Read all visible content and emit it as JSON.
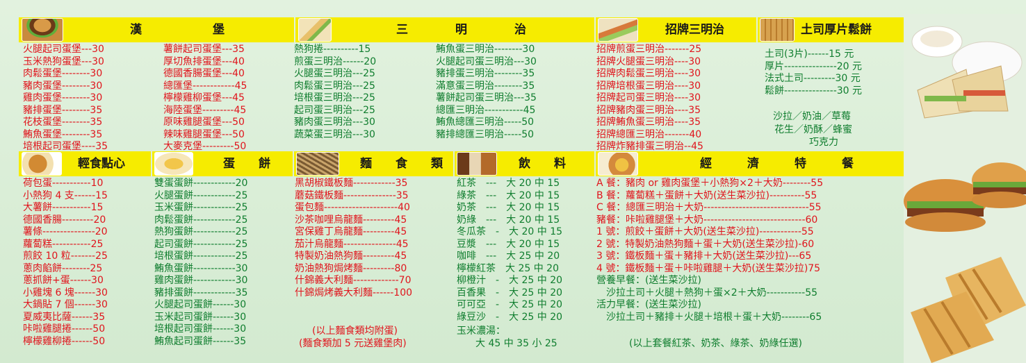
{
  "burger": {
    "title": "漢　　　　　　堡",
    "col1": [
      "火腿起司蛋堡---30",
      "玉米熱狗蛋堡---30",
      "肉鬆蛋堡--------30",
      "豬肉蛋堡--------30",
      "雞肉蛋堡--------30",
      "豬排蛋堡--------35",
      "花枝蛋堡--------35",
      "鮪魚蛋堡--------35",
      "培根起司蛋堡----35"
    ],
    "col2": [
      "薯餅起司蛋堡---35",
      "厚切魚排蛋堡---40",
      "德國香腸蛋堡---40",
      "總匯堡------------45",
      "檸檬雞柳蛋堡---45",
      "海陸蛋堡---------45",
      "原味雞腿蛋堡---50",
      "辣味雞腿蛋堡---50",
      "大麥克堡---------50"
    ]
  },
  "sandwich": {
    "title": "三　　　　明　　　　治",
    "col1": [
      "熱狗捲----------15",
      "煎蛋三明治------20",
      "火腿蛋三明治---25",
      "肉鬆蛋三明治---25",
      "培根蛋三明治---25",
      "起司蛋三明治---25",
      "豬肉蛋三明治---30",
      "蔬菜蛋三明治---30"
    ],
    "col2": [
      "鮪魚蛋三明治--------30",
      "火腿起司蛋三明治---30",
      "豬排蛋三明治--------35",
      "滿意蛋三明治--------35",
      "薯餅起司蛋三明治---35",
      "總匯三明治-----------45",
      "鮪魚總匯三明治-----50",
      "豬排總匯三明治-----50"
    ]
  },
  "signature": {
    "title": "招牌三明治",
    "items": [
      "招牌煎蛋三明治-------25",
      "招牌火腿蛋三明治----30",
      "招牌肉鬆蛋三明治----30",
      "招牌培根蛋三明治----30",
      "招牌起司蛋三明治----30",
      "招牌豬肉蛋三明治----35",
      "招牌鮪魚蛋三明治----35",
      "招牌總匯三明治-------40",
      "招牌炸豬排蛋三明治--45"
    ]
  },
  "toast": {
    "title": "土司厚片鬆餅",
    "items": [
      "土司(3片)------15 元",
      "厚片---------------20 元",
      "法式土司---------30 元",
      "鬆餅---------------30 元"
    ],
    "flavors": [
      "沙拉／奶油／草莓",
      "花生／奶酥／蜂蜜",
      "巧克力"
    ]
  },
  "snack": {
    "title": "輕食點心",
    "items": [
      "荷包蛋-----------10",
      "小熱狗 4 支------15",
      "大薯餅-----------15",
      "德國香腸---------20",
      "薯條---------------20",
      "蘿蔔糕-----------25",
      "煎餃 10 粒-------25",
      "蔥肉餡餅--------25",
      "蔥抓餅+蛋------30",
      "小雞塊 6 塊------30",
      "大鍋貼 7 個------30",
      "夏威夷比薩------35",
      "咔啦雞腿捲------50",
      "檸檬雞柳捲------50"
    ]
  },
  "egg": {
    "title": "蛋　　餅",
    "items": [
      "雙蛋蛋餅------------20",
      "火腿蛋餅------------25",
      "玉米蛋餅------------25",
      "肉鬆蛋餅------------25",
      "熱狗蛋餅------------25",
      "起司蛋餅------------25",
      "培根蛋餅------------25",
      "鮪魚蛋餅------------30",
      "雞肉蛋餅------------30",
      "豬排蛋餅------------35",
      "火腿起司蛋餅------30",
      "玉米起司蛋餅------30",
      "培根起司蛋餅------30",
      "鮪魚起司蛋餅------35"
    ]
  },
  "noodle": {
    "title": "麵　　食　　類",
    "items": [
      "黑胡椒鐵板麵------------35",
      "蘑菇鐵板麵---------------35",
      "蛋包麵---------------------40",
      "沙茶咖哩烏龍麵---------45",
      "宮保雞丁烏龍麵---------45",
      "茄汁烏龍麵---------------45",
      "特製奶油熱狗麵---------45",
      "奶油熱狗焗烤麵---------80",
      "什錦義大利麵-------------70",
      "什錦焗烤義大利麵------100"
    ],
    "note1": "(以上麵食類均附蛋)",
    "note2": "(麵食類加 5 元送雞堡肉)"
  },
  "drinks": {
    "title": "飲　　料",
    "items": [
      "紅茶　---　大 20 中 15",
      "綠茶　---　大 20 中 15",
      "奶茶　---　大 20 中 15",
      "奶綠　---　大 20 中 15",
      "冬瓜茶　-　大 20 中 15",
      "豆漿　---　大 20 中 15",
      "咖啡　---　大 25 中 20",
      "檸檬紅茶　大 25 中 20",
      "柳橙汁　-　大 25 中 20",
      "百香果　-　大 25 中 20",
      "可可亞　-　大 25 中 20",
      "綠豆沙　-　大 25 中 20"
    ],
    "corn_label": "玉米濃湯：",
    "corn_price": "大 45 中 35 小 25"
  },
  "combo": {
    "title": "經　　　濟　　　特　　　餐",
    "items": [
      {
        "text": "A 餐：豬肉 or 雞肉蛋堡＋小熱狗×2＋大奶--------55",
        "color": "red"
      },
      {
        "text": "B 餐：蘿蔔糕＋蛋餅＋大奶(送生菜沙拉)----------55",
        "color": "red"
      },
      {
        "text": "C 餐：總匯三明治＋大奶------------------------------55",
        "color": "red"
      },
      {
        "text": "豬餐：咔啦雞腿堡＋大奶-----------------------------60",
        "color": "red"
      },
      {
        "text": "1 號：煎餃＋蛋餅＋大奶(送生菜沙拉)------------55",
        "color": "red"
      },
      {
        "text": "2 號：特製奶油熱狗麵＋蛋＋大奶(送生菜沙拉)-60",
        "color": "red"
      },
      {
        "text": "3 號：鐵板麵＋蛋＋豬排＋大奶(送生菜沙拉)---65",
        "color": "red"
      },
      {
        "text": "4 號：鐵板麵＋蛋＋咔啦雞腿＋大奶(送生菜沙拉)75",
        "color": "red"
      },
      {
        "text": "營養早餐：(送生菜沙拉)",
        "color": "green"
      },
      {
        "text": "　沙拉土司＋火腿＋熱狗＋蛋×2＋大奶-----------55",
        "color": "green"
      },
      {
        "text": "活力早餐：(送生菜沙拉)",
        "color": "green"
      },
      {
        "text": "　沙拉土司＋豬排＋火腿＋培根＋蛋＋大奶--------65",
        "color": "green"
      }
    ],
    "note": "(以上套餐紅茶、奶茶、綠茶、奶綠任選)"
  },
  "colors": {
    "header": "#f6ec00",
    "red": "#e0141c",
    "green": "#0f7d2e",
    "bg": "#d6ecd3"
  }
}
